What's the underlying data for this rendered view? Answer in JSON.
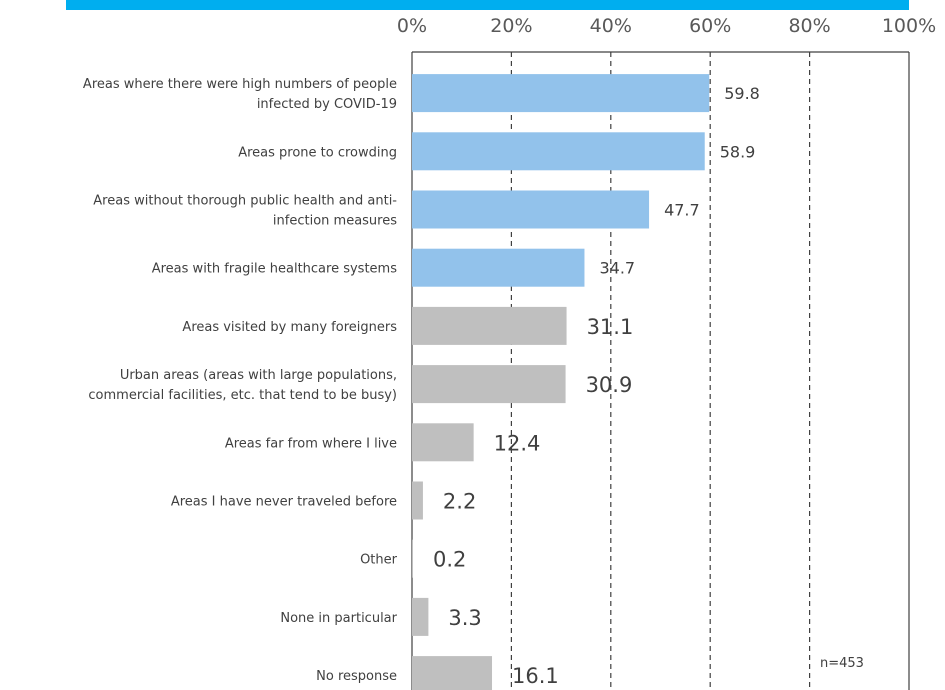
{
  "colors": {
    "top_bar": "#00aeef",
    "highlight_bar": "#92c2eb",
    "other_bar": "#bfbfbf",
    "axis": "#404040",
    "gridline": "#404040"
  },
  "chart_data": {
    "type": "bar",
    "orientation": "horizontal",
    "categories": [
      [
        "Areas where there were high numbers of people",
        "infected by COVID-19"
      ],
      [
        "Areas prone to crowding"
      ],
      [
        "Areas without thorough public health and anti-",
        "infection measures"
      ],
      [
        "Areas with fragile healthcare systems"
      ],
      [
        "Areas visited by many foreigners"
      ],
      [
        "Urban areas (areas with large populations,",
        "commercial facilities, etc. that tend to be busy)"
      ],
      [
        "Areas far from where I live"
      ],
      [
        "Areas I have never traveled before"
      ],
      [
        "Other"
      ],
      [
        "None in particular"
      ],
      [
        "No response"
      ]
    ],
    "values": [
      59.8,
      58.9,
      47.7,
      34.7,
      31.1,
      30.9,
      12.4,
      2.2,
      0.2,
      3.3,
      16.1
    ],
    "value_labels": [
      "59.8",
      "58.9",
      "47.7",
      "34.7",
      "31.1",
      "30.9",
      "12.4",
      "2.2",
      "0.2",
      "3.3",
      "16.1"
    ],
    "highlighted": [
      true,
      true,
      true,
      true,
      false,
      false,
      false,
      false,
      false,
      false,
      false
    ],
    "x_ticks": [
      "0%",
      "20%",
      "40%",
      "60%",
      "80%",
      "100%"
    ],
    "xlim": [
      0,
      100
    ],
    "grid": "dashed vertical",
    "note": "n=453"
  }
}
